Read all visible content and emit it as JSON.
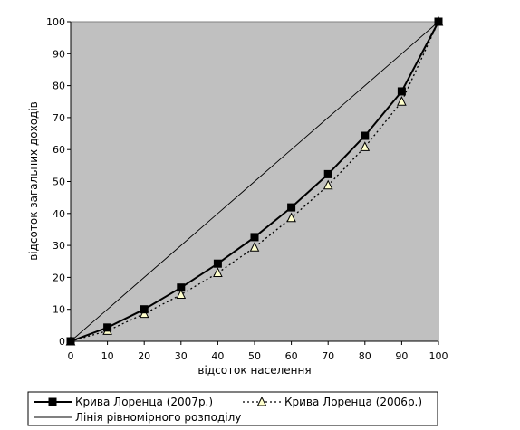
{
  "chart_data": {
    "type": "line",
    "title": "",
    "xlabel": "відсоток населення",
    "ylabel": "відсоток загальних доходів",
    "xlim": [
      0,
      100
    ],
    "ylim": [
      0,
      100
    ],
    "x_ticks": [
      0,
      10,
      20,
      30,
      40,
      50,
      60,
      70,
      80,
      90,
      100
    ],
    "y_ticks": [
      0,
      10,
      20,
      30,
      40,
      50,
      60,
      70,
      80,
      90,
      100
    ],
    "plot_background": "#c0c0c0",
    "grid": false,
    "legend_position": "bottom",
    "x": [
      0,
      10,
      20,
      30,
      40,
      50,
      60,
      70,
      80,
      90,
      100
    ],
    "series": [
      {
        "name": "Крива Лоренца  (2007р.)",
        "values": [
          0,
          4.3,
          10,
          16.8,
          24.3,
          32.6,
          41.9,
          52.3,
          64.3,
          78.2,
          100
        ],
        "style": "solid",
        "marker": "square",
        "color": "#000000"
      },
      {
        "name": "Крива Лоренца  (2006р.)",
        "values": [
          0,
          3.3,
          8.6,
          14.6,
          21.4,
          29.4,
          38.6,
          48.8,
          60.8,
          75.0,
          100
        ],
        "style": "dotted",
        "marker": "triangle",
        "color": "#000000",
        "marker_fill": "#ffffcc"
      },
      {
        "name": "Лінія рівномірного розподілу",
        "values": [
          0,
          10,
          20,
          30,
          40,
          50,
          60,
          70,
          80,
          90,
          100
        ],
        "style": "thin",
        "marker": "none",
        "color": "#000000"
      }
    ]
  }
}
